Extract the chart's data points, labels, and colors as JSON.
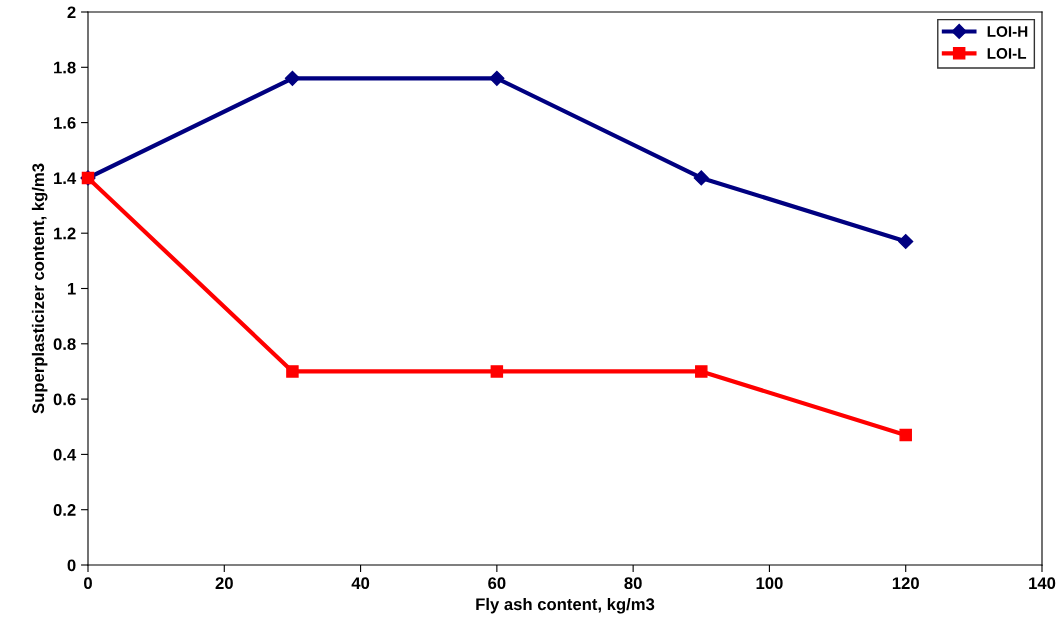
{
  "chart_data": {
    "type": "line",
    "xlabel": "Fly ash content, kg/m3",
    "ylabel": "Superplasticizer content, kg/m3",
    "x": [
      0,
      30,
      60,
      90,
      120
    ],
    "series": [
      {
        "name": "LOI-H",
        "color": "#000080",
        "marker": "diamond",
        "values": [
          1.4,
          1.76,
          1.76,
          1.4,
          1.17
        ]
      },
      {
        "name": "LOI-L",
        "color": "#ff0000",
        "marker": "square",
        "values": [
          1.4,
          0.7,
          0.7,
          0.7,
          0.47
        ]
      }
    ],
    "xlim": [
      0,
      140
    ],
    "xticks": [
      0,
      20,
      40,
      60,
      80,
      100,
      120,
      140
    ],
    "ylim": [
      0,
      2
    ],
    "yticks": [
      0,
      0.2,
      0.4,
      0.6,
      0.8,
      1,
      1.2,
      1.4,
      1.6,
      1.8,
      2
    ],
    "grid": false,
    "legend": "top right",
    "line_style": "solid"
  }
}
